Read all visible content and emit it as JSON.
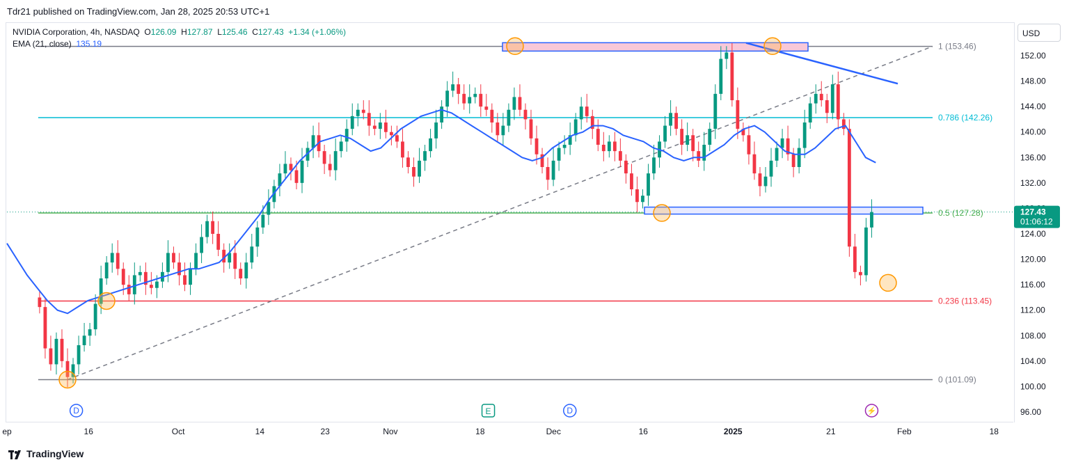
{
  "header": {
    "published": "Tdr21 published on TradingView.com, Jan 28, 2025 20:53 UTC+1"
  },
  "legend": {
    "symbol": "NVIDIA Corporation, 4h, NASDAQ",
    "o_label": "O",
    "o": "126.09",
    "h_label": "H",
    "h": "127.87",
    "l_label": "L",
    "l": "125.46",
    "c_label": "C",
    "c": "127.43",
    "change": "+1.34 (+1.06%)",
    "ema_label": "EMA (21, close)",
    "ema_value": "135.19"
  },
  "price_axis": {
    "currency": "USD",
    "last_price": "127.43",
    "countdown": "01:06:12"
  },
  "footer": {
    "brand": "TradingView"
  },
  "colors": {
    "up": "#089981",
    "down": "#f23645",
    "ema": "#2962ff",
    "fib_786": "#00bcd4",
    "fib_05": "#4caf50",
    "fib_236": "#f23645",
    "fib_01": "#787b86",
    "zone_fill": "#f8c8d8",
    "zone_border": "#2962ff",
    "circle": "#ff9800"
  },
  "chart_data": {
    "type": "candlestick",
    "symbol": "NVIDIA Corporation",
    "interval": "4h",
    "exchange": "NASDAQ",
    "ylim": [
      94,
      156
    ],
    "y_ticks": [
      96,
      100,
      104,
      108,
      112,
      116,
      120,
      124,
      128,
      132,
      136,
      140,
      144,
      148,
      152
    ],
    "x_ticks": [
      {
        "label": "ep",
        "x": 0
      },
      {
        "label": "16",
        "x": 10
      },
      {
        "label": "Oct",
        "x": 21
      },
      {
        "label": "14",
        "x": 31
      },
      {
        "label": "23",
        "x": 39
      },
      {
        "label": "Nov",
        "x": 47
      },
      {
        "label": "18",
        "x": 58
      },
      {
        "label": "Dec",
        "x": 67
      },
      {
        "label": "16",
        "x": 78
      },
      {
        "label": "2025",
        "x": 89,
        "bold": true
      },
      {
        "label": "21",
        "x": 101
      },
      {
        "label": "Feb",
        "x": 110
      },
      {
        "label": "18",
        "x": 121
      }
    ],
    "x_range": [
      0,
      122
    ],
    "candles_close": [
      112.5,
      106.0,
      103.5,
      107.5,
      104.0,
      101.5,
      103.5,
      106.5,
      108.0,
      109.0,
      113.0,
      117.0,
      119.5,
      121.0,
      118.5,
      116.0,
      114.5,
      117.5,
      118.0,
      116.0,
      115.5,
      116.5,
      118.0,
      121.0,
      119.5,
      117.5,
      116.0,
      118.5,
      121.0,
      123.5,
      126.0,
      124.0,
      121.5,
      119.5,
      121.0,
      118.5,
      117.0,
      119.5,
      122.0,
      125.0,
      127.0,
      129.0,
      131.5,
      133.5,
      135.0,
      134.0,
      132.0,
      135.5,
      137.5,
      139.5,
      137.0,
      135.0,
      134.0,
      137.0,
      138.5,
      140.5,
      142.5,
      143.5,
      143.0,
      141.0,
      140.5,
      141.5,
      140.0,
      139.5,
      138.5,
      136.0,
      134.5,
      133.0,
      135.5,
      137.0,
      139.0,
      141.5,
      144.0,
      146.5,
      147.5,
      146.0,
      144.5,
      145.5,
      146.0,
      144.0,
      143.5,
      141.5,
      139.5,
      141.0,
      143.5,
      145.5,
      143.5,
      142.0,
      139.0,
      136.5,
      134.5,
      132.5,
      135.5,
      137.5,
      138.0,
      139.5,
      142.0,
      144.0,
      142.5,
      140.5,
      138.0,
      137.0,
      138.5,
      137.0,
      135.5,
      133.5,
      131.0,
      129.0,
      130.0,
      133.5,
      136.0,
      138.5,
      141.0,
      143.0,
      140.5,
      138.0,
      139.5,
      137.0,
      135.5,
      138.0,
      140.5,
      146.0,
      151.5,
      152.5,
      145.0,
      140.5,
      139.5,
      136.5,
      133.5,
      131.5,
      133.0,
      135.5,
      137.5,
      139.0,
      136.5,
      134.5,
      137.5,
      141.5,
      144.5,
      146.0,
      145.0,
      143.0,
      147.5,
      142.0,
      140.5,
      122.0,
      118.0,
      117.5,
      125.0,
      127.43
    ],
    "ema_21": [
      122.5,
      120.0,
      117.5,
      115.5,
      113.5,
      112.0,
      111.5,
      112.5,
      113.5,
      114.0,
      114.5,
      115.0,
      115.5,
      116.0,
      116.5,
      117.0,
      117.5,
      118.0,
      118.5,
      118.5,
      119.0,
      119.5,
      121.0,
      123.0,
      125.0,
      127.0,
      129.5,
      131.5,
      133.5,
      135.5,
      137.0,
      138.5,
      139.0,
      139.5,
      139.0,
      138.0,
      137.0,
      137.5,
      139.0,
      140.5,
      141.5,
      142.5,
      143.0,
      143.5,
      143.0,
      142.0,
      141.0,
      140.0,
      139.0,
      138.0,
      137.0,
      136.0,
      135.5,
      136.0,
      137.5,
      138.5,
      139.5,
      140.0,
      141.0,
      141.0,
      140.5,
      139.5,
      139.0,
      138.5,
      137.5,
      137.0,
      136.0,
      135.5,
      136.0,
      136.0,
      137.0,
      138.0,
      139.5,
      140.5,
      141.0,
      140.0,
      138.5,
      137.0,
      136.5,
      136.5,
      137.5,
      139.0,
      140.5,
      141.0,
      138.5,
      136.0,
      135.19
    ],
    "levels": [
      {
        "label": "1 (153.46)",
        "value": 153.46
      },
      {
        "label": "0.786 (142.26)",
        "value": 142.26
      },
      {
        "label": "0.5 (127.28)",
        "value": 127.28
      },
      {
        "label": "0.236 (113.45)",
        "value": 113.45
      },
      {
        "label": "0 (101.09)",
        "value": 101.09
      }
    ],
    "events": [
      {
        "label": "D",
        "x": 8.5
      },
      {
        "label": "E",
        "x": 59
      },
      {
        "label": "D",
        "x": 69
      },
      {
        "label": "⚡",
        "x": 106
      }
    ]
  }
}
